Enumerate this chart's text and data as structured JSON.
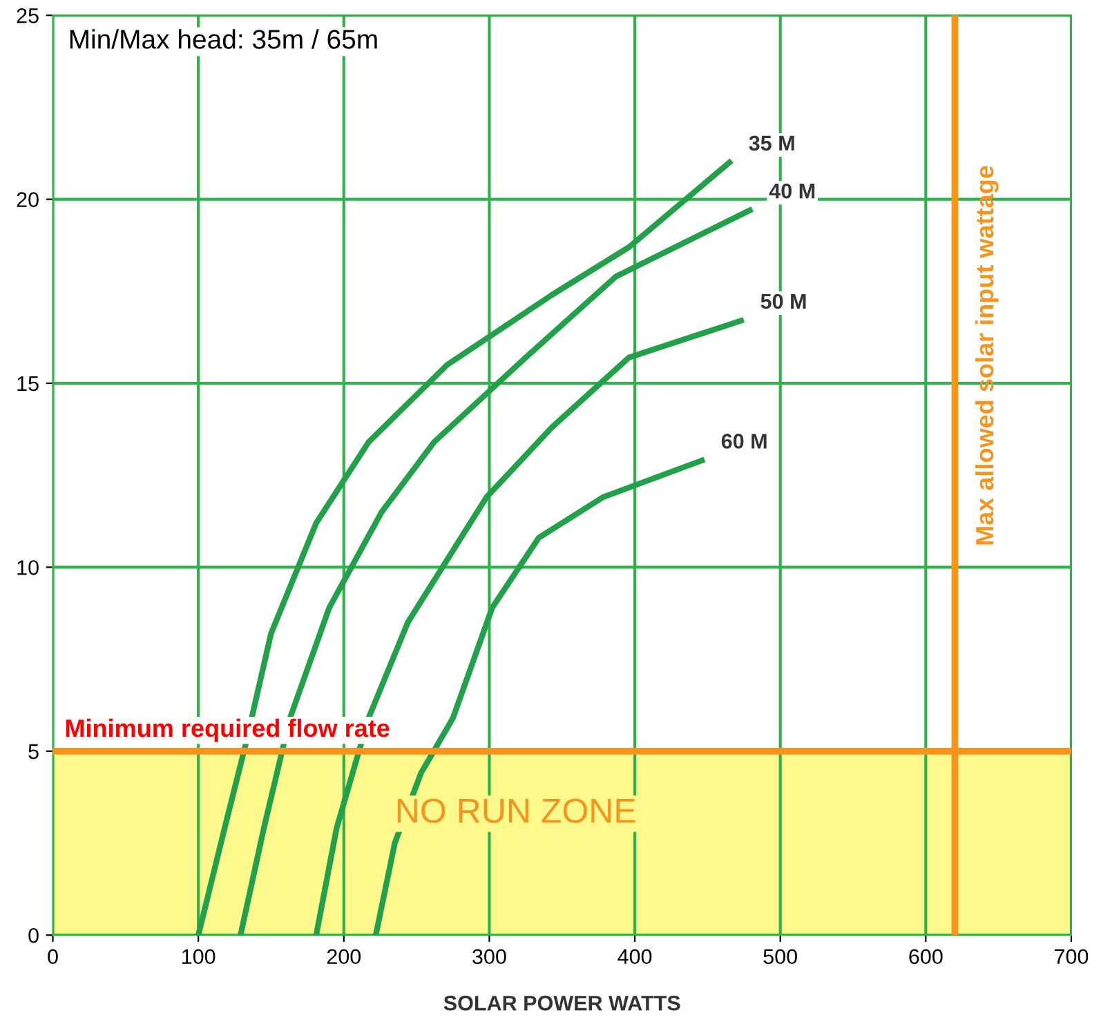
{
  "chart_data": {
    "type": "line",
    "xlabel": "SOLAR POWER WATTS",
    "annotations": [
      "Min/Max head: 35m / 65m"
    ],
    "xlim": [
      0,
      700
    ],
    "ylim": [
      0,
      25
    ],
    "xticks": [
      0,
      100,
      200,
      300,
      400,
      500,
      600,
      700
    ],
    "yticks": [
      0,
      5,
      10,
      15,
      20,
      25
    ],
    "grid": true,
    "marker": "none",
    "line_style": "solid",
    "ref_lines": [
      {
        "axis": "y",
        "value": 5,
        "label": "Minimum required flow rate",
        "color": "#f7941d"
      },
      {
        "axis": "x",
        "value": 620,
        "label": "Max allowed solar input wattage",
        "color": "#f7941d"
      }
    ],
    "bands": [
      {
        "axis": "y",
        "from": 0,
        "to": 5,
        "label": "NO RUN ZONE",
        "color": "#fdf98c"
      }
    ],
    "series": [
      {
        "name": "35 M",
        "color": "#22a04a",
        "x": [
          100,
          118,
          132,
          150,
          181,
          217,
          271,
          343,
          396,
          465
        ],
        "values": [
          0,
          2.9,
          5.1,
          8.2,
          11.2,
          13.4,
          15.5,
          17.4,
          18.7,
          21.0
        ]
      },
      {
        "name": "40 M",
        "color": "#22a04a",
        "x": [
          129,
          145,
          163,
          190,
          226,
          262,
          325,
          387,
          479
        ],
        "values": [
          0,
          2.9,
          5.9,
          8.9,
          11.5,
          13.4,
          15.7,
          17.9,
          19.7
        ]
      },
      {
        "name": "50 M",
        "color": "#22a04a",
        "x": [
          181,
          195,
          217,
          244,
          298,
          343,
          396,
          473
        ],
        "values": [
          0,
          2.9,
          5.9,
          8.5,
          11.9,
          13.8,
          15.7,
          16.7
        ]
      },
      {
        "name": "60 M",
        "color": "#22a04a",
        "x": [
          222,
          235,
          253,
          275,
          302,
          334,
          378,
          446
        ],
        "values": [
          0,
          2.5,
          4.4,
          5.9,
          8.9,
          10.8,
          11.9,
          12.9
        ]
      }
    ]
  }
}
